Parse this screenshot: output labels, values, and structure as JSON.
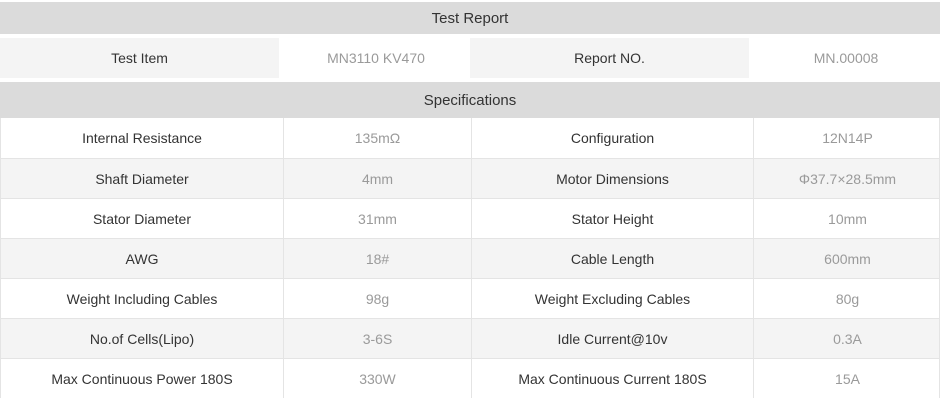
{
  "report": {
    "title": "Test Report",
    "fields": [
      {
        "label": "Test Item",
        "value": "MN3110 KV470"
      },
      {
        "label": "Report NO.",
        "value": "MN.00008"
      }
    ],
    "section_title": "Specifications"
  },
  "specs": {
    "rows": [
      {
        "left_label": "Internal Resistance",
        "left_value": "135mΩ",
        "right_label": "Configuration",
        "right_value": "12N14P"
      },
      {
        "left_label": "Shaft Diameter",
        "left_value": "4mm",
        "right_label": "Motor Dimensions",
        "right_value": "Φ37.7×28.5mm"
      },
      {
        "left_label": "Stator Diameter",
        "left_value": "31mm",
        "right_label": "Stator Height",
        "right_value": "10mm"
      },
      {
        "left_label": "AWG",
        "left_value": "18#",
        "right_label": "Cable Length",
        "right_value": "600mm"
      },
      {
        "left_label": "Weight Including Cables",
        "left_value": "98g",
        "right_label": "Weight Excluding Cables",
        "right_value": "80g"
      },
      {
        "left_label": "No.of Cells(Lipo)",
        "left_value": "3-6S",
        "right_label": "Idle Current@10v",
        "right_value": "0.3A"
      },
      {
        "left_label": "Max Continuous Power 180S",
        "left_value": "330W",
        "right_label": "Max Continuous Current 180S",
        "right_value": "15A"
      }
    ]
  },
  "colors": {
    "band_bg": "#dbdbdb",
    "row_stripe_bg": "#f4f4f4",
    "label_text": "#333333",
    "value_text": "#9a9a9a",
    "border": "#e4e4e4"
  }
}
